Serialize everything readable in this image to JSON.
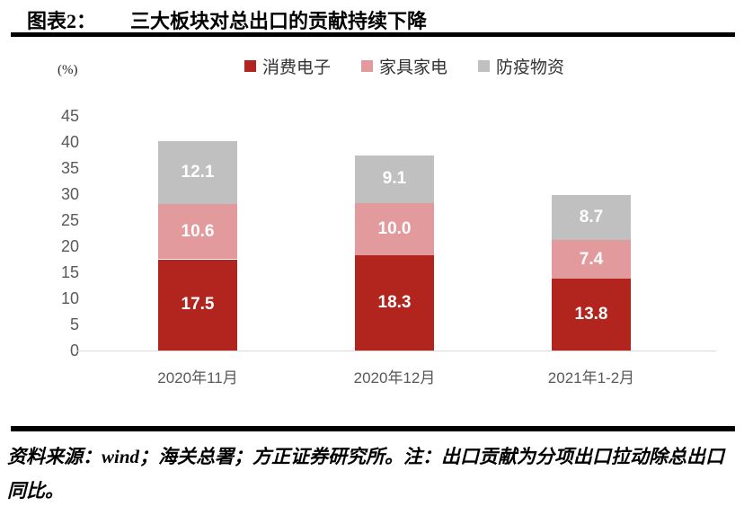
{
  "header": {
    "label": "图表2：",
    "title": "三大板块对总出口的贡献持续下降"
  },
  "chart_data": {
    "type": "bar",
    "stacked": true,
    "title": "三大板块对总出口的贡献持续下降",
    "categories": [
      "2020年11月",
      "2020年12月",
      "2021年1-2月"
    ],
    "series": [
      {
        "name": "消费电子",
        "color": "#b2251f",
        "values": [
          17.5,
          18.3,
          13.8
        ]
      },
      {
        "name": "家具家电",
        "color": "#e39a9c",
        "values": [
          10.6,
          10.0,
          7.4
        ]
      },
      {
        "name": "防疫物资",
        "color": "#c0c0c0",
        "values": [
          12.1,
          9.1,
          8.7
        ]
      }
    ],
    "xlabel": "",
    "ylabel": "(%)",
    "yticks": [
      0,
      5,
      10,
      15,
      20,
      25,
      30,
      35,
      40,
      45
    ],
    "ylim": [
      0,
      45
    ],
    "legend_position": "top",
    "grid": false,
    "data_labels": true
  },
  "colors": {
    "axis_text": "#595959",
    "baseline": "#d9d9d9",
    "divider": "#000000",
    "data_label_text": "#ffffff"
  },
  "footer": {
    "text": "资料来源：wind；海关总署；方正证券研究所。注：出口贡献为分项出口拉动除总出口同比。"
  }
}
